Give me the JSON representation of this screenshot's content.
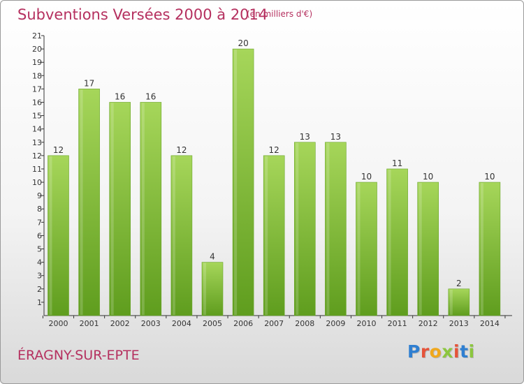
{
  "header": {
    "title": "Subventions Versées 2000 à 2014",
    "unit_note": "(en milliers d'€)"
  },
  "footer": {
    "commune": "ÉRAGNY-SUR-EPTE",
    "logo_letters": [
      "P",
      "r",
      "o",
      "x",
      "i",
      "t",
      "i"
    ],
    "logo_colors": [
      "#2f7fd1",
      "#e5533a",
      "#f0a81c",
      "#8cc63f",
      "#e5533a",
      "#2f7fd1",
      "#8cc63f"
    ]
  },
  "colors": {
    "title": "#b5305f",
    "bar_top": "#a6d65a",
    "bar_bottom": "#5f9d1e",
    "axis": "#333333"
  },
  "chart_data": {
    "type": "bar",
    "categories": [
      "2000",
      "2001",
      "2002",
      "2003",
      "2004",
      "2005",
      "2006",
      "2007",
      "2008",
      "2009",
      "2010",
      "2011",
      "2012",
      "2013",
      "2014"
    ],
    "values": [
      12,
      17,
      16,
      16,
      12,
      4,
      20,
      12,
      13,
      13,
      10,
      11,
      10,
      2,
      10
    ],
    "data_labels": [
      "12",
      "17",
      "16",
      "16",
      "12",
      "4",
      "20",
      "12",
      "13",
      "13",
      "10",
      "11",
      "10",
      "2",
      "10"
    ],
    "ylim": [
      1,
      21
    ],
    "yticks": [
      "1",
      "2",
      "3",
      "4",
      "5",
      "6",
      "7",
      "8",
      "9",
      "10",
      "11",
      "12",
      "13",
      "14",
      "15",
      "16",
      "17",
      "18",
      "19",
      "20",
      "21"
    ],
    "grid": false,
    "legend": "none"
  }
}
